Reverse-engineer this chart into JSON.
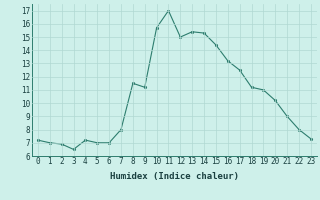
{
  "x": [
    0,
    1,
    2,
    3,
    4,
    5,
    6,
    7,
    8,
    9,
    10,
    11,
    12,
    13,
    14,
    15,
    16,
    17,
    18,
    19,
    20,
    21,
    22,
    23
  ],
  "y": [
    7.2,
    7.0,
    6.9,
    6.5,
    7.2,
    7.0,
    7.0,
    8.0,
    11.5,
    11.2,
    15.7,
    17.0,
    15.0,
    15.4,
    15.3,
    14.4,
    13.2,
    12.5,
    11.2,
    11.0,
    10.2,
    9.0,
    8.0,
    7.3
  ],
  "line_color": "#2d7d6e",
  "bg_color": "#cef0ea",
  "grid_color": "#b0d8d2",
  "xlabel": "Humidex (Indice chaleur)",
  "ylim": [
    6,
    17.5
  ],
  "xlim": [
    -0.5,
    23.5
  ],
  "yticks": [
    6,
    7,
    8,
    9,
    10,
    11,
    12,
    13,
    14,
    15,
    16,
    17
  ],
  "xticks": [
    0,
    1,
    2,
    3,
    4,
    5,
    6,
    7,
    8,
    9,
    10,
    11,
    12,
    13,
    14,
    15,
    16,
    17,
    18,
    19,
    20,
    21,
    22,
    23
  ],
  "tick_fontsize": 5.5,
  "xlabel_fontsize": 6.5
}
